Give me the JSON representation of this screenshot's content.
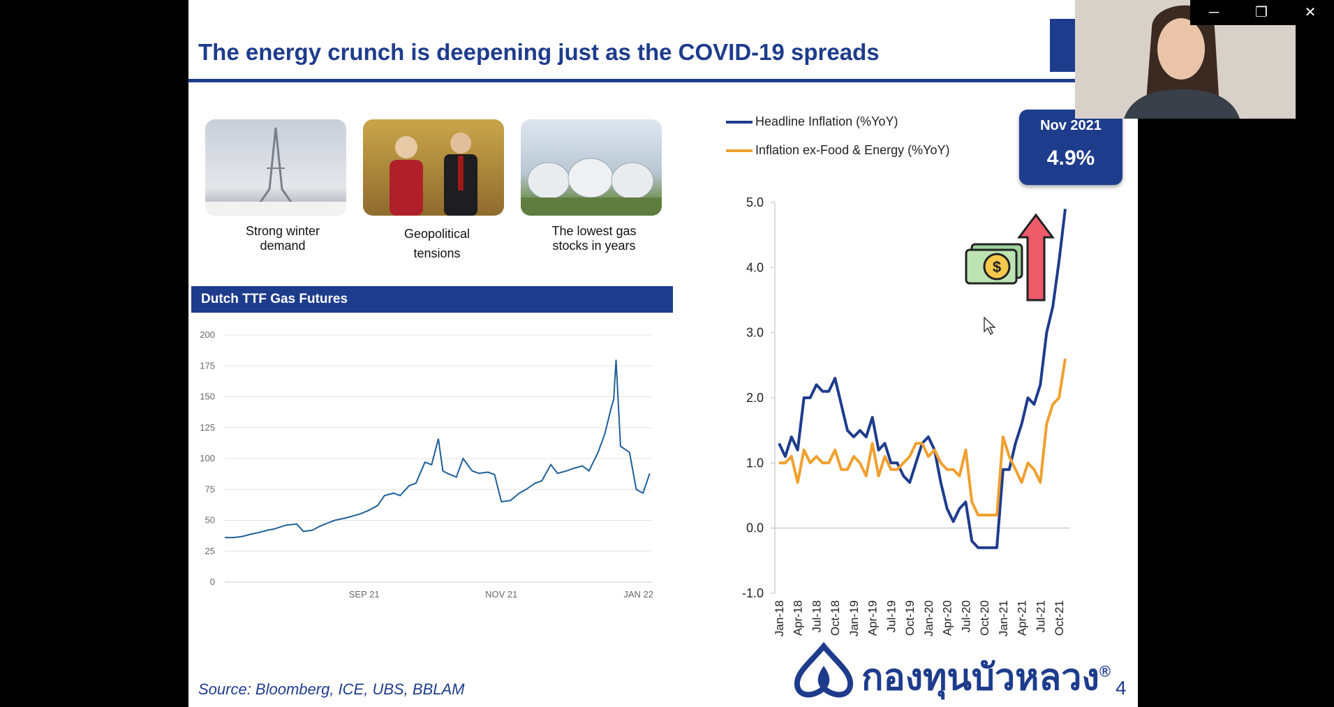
{
  "slide": {
    "title": "The energy crunch is deepening just as the COVID-19 spreads",
    "source": "Source:  Bloomberg, ICE, UBS, BBLAM",
    "page_number": "4",
    "logo_text": "กองทุนบัวหลวง",
    "logo_mark": "®"
  },
  "photos": [
    {
      "caption": "Strong winter demand"
    },
    {
      "caption": "Geopolitical tensions"
    },
    {
      "caption": "The lowest gas stocks in years"
    }
  ],
  "badge": {
    "date": "Nov 2021",
    "value": "4.9%"
  },
  "window": {
    "minimize": "─",
    "restore": "❐",
    "close": "✕"
  },
  "colors": {
    "navy": "#1e3c8c",
    "ttf_line": "#1f5f99",
    "headline": "#1e3c8c",
    "core": "#f0a030"
  },
  "chart_data": [
    {
      "type": "line",
      "title": "Dutch TTF Gas Futures",
      "ylim": [
        0,
        200
      ],
      "yticks": [
        0,
        25,
        50,
        75,
        100,
        125,
        150,
        175,
        200
      ],
      "xticks": [
        "SEP 21",
        "NOV 21",
        "JAN 22"
      ],
      "x_range": [
        "2021-07-01",
        "2022-01-07"
      ],
      "xtick_dates": [
        "2021-09-01",
        "2021-11-01",
        "2022-01-01"
      ],
      "series": [
        {
          "x": [
            "2021-07-01",
            "2021-07-05",
            "2021-07-09",
            "2021-07-13",
            "2021-07-16",
            "2021-07-20",
            "2021-07-23",
            "2021-07-28",
            "2021-08-02",
            "2021-08-05",
            "2021-08-09",
            "2021-08-12",
            "2021-08-16",
            "2021-08-19",
            "2021-08-24",
            "2021-08-30",
            "2021-09-03",
            "2021-09-07",
            "2021-09-10",
            "2021-09-14",
            "2021-09-17",
            "2021-09-21",
            "2021-09-24",
            "2021-09-28",
            "2021-10-01",
            "2021-10-04",
            "2021-10-06",
            "2021-10-08",
            "2021-10-12",
            "2021-10-15",
            "2021-10-19",
            "2021-10-22",
            "2021-10-26",
            "2021-10-29",
            "2021-11-01",
            "2021-11-05",
            "2021-11-09",
            "2021-11-12",
            "2021-11-16",
            "2021-11-19",
            "2021-11-23",
            "2021-11-26",
            "2021-11-30",
            "2021-12-03",
            "2021-12-07",
            "2021-12-10",
            "2021-12-14",
            "2021-12-17",
            "2021-12-20",
            "2021-12-21",
            "2021-12-22",
            "2021-12-24",
            "2021-12-28",
            "2021-12-31",
            "2022-01-03",
            "2022-01-06"
          ],
          "values": [
            36,
            36,
            37,
            39,
            40,
            42,
            43,
            46,
            47,
            41,
            42,
            45,
            48,
            50,
            52,
            55,
            58,
            62,
            70,
            72,
            70,
            78,
            80,
            97,
            95,
            116,
            90,
            88,
            85,
            100,
            90,
            88,
            89,
            87,
            65,
            66,
            72,
            75,
            80,
            82,
            95,
            88,
            90,
            92,
            94,
            90,
            105,
            120,
            142,
            148,
            180,
            110,
            105,
            75,
            72,
            88
          ]
        }
      ]
    },
    {
      "type": "line",
      "ylim": [
        -1.0,
        5.0
      ],
      "yticks": [
        "-1.0",
        "0.0",
        "1.0",
        "2.0",
        "3.0",
        "4.0",
        "5.0"
      ],
      "xticks": [
        "Jan-18",
        "Apr-18",
        "Jul-18",
        "Oct-18",
        "Jan-19",
        "Apr-19",
        "Jul-19",
        "Oct-19",
        "Jan-20",
        "Apr-20",
        "Jul-20",
        "Oct-20",
        "Jan-21",
        "Apr-21",
        "Jul-21",
        "Oct-21"
      ],
      "x_months": [
        "Jan-18",
        "Feb-18",
        "Mar-18",
        "Apr-18",
        "May-18",
        "Jun-18",
        "Jul-18",
        "Aug-18",
        "Sep-18",
        "Oct-18",
        "Nov-18",
        "Dec-18",
        "Jan-19",
        "Feb-19",
        "Mar-19",
        "Apr-19",
        "May-19",
        "Jun-19",
        "Jul-19",
        "Aug-19",
        "Sep-19",
        "Oct-19",
        "Nov-19",
        "Dec-19",
        "Jan-20",
        "Feb-20",
        "Mar-20",
        "Apr-20",
        "May-20",
        "Jun-20",
        "Jul-20",
        "Aug-20",
        "Sep-20",
        "Oct-20",
        "Nov-20",
        "Dec-20",
        "Jan-21",
        "Feb-21",
        "Mar-21",
        "Apr-21",
        "May-21",
        "Jun-21",
        "Jul-21",
        "Aug-21",
        "Sep-21",
        "Oct-21",
        "Nov-21"
      ],
      "series": [
        {
          "name": "Headline Inflation (%YoY)",
          "values": [
            1.3,
            1.1,
            1.4,
            1.2,
            2.0,
            2.0,
            2.2,
            2.1,
            2.1,
            2.3,
            1.9,
            1.5,
            1.4,
            1.5,
            1.4,
            1.7,
            1.2,
            1.3,
            1.0,
            1.0,
            0.8,
            0.7,
            1.0,
            1.3,
            1.4,
            1.2,
            0.7,
            0.3,
            0.1,
            0.3,
            0.4,
            -0.2,
            -0.3,
            -0.3,
            -0.3,
            -0.3,
            0.9,
            0.9,
            1.3,
            1.6,
            2.0,
            1.9,
            2.2,
            3.0,
            3.4,
            4.1,
            4.9
          ]
        },
        {
          "name": "Inflation ex-Food & Energy (%YoY)",
          "values": [
            1.0,
            1.0,
            1.1,
            0.7,
            1.2,
            1.0,
            1.1,
            1.0,
            1.0,
            1.2,
            0.9,
            0.9,
            1.1,
            1.0,
            0.8,
            1.3,
            0.8,
            1.1,
            0.9,
            0.9,
            1.0,
            1.1,
            1.3,
            1.3,
            1.1,
            1.2,
            1.0,
            0.9,
            0.9,
            0.8,
            1.2,
            0.4,
            0.2,
            0.2,
            0.2,
            0.2,
            1.4,
            1.1,
            0.9,
            0.7,
            1.0,
            0.9,
            0.7,
            1.6,
            1.9,
            2.0,
            2.6
          ]
        }
      ]
    }
  ]
}
